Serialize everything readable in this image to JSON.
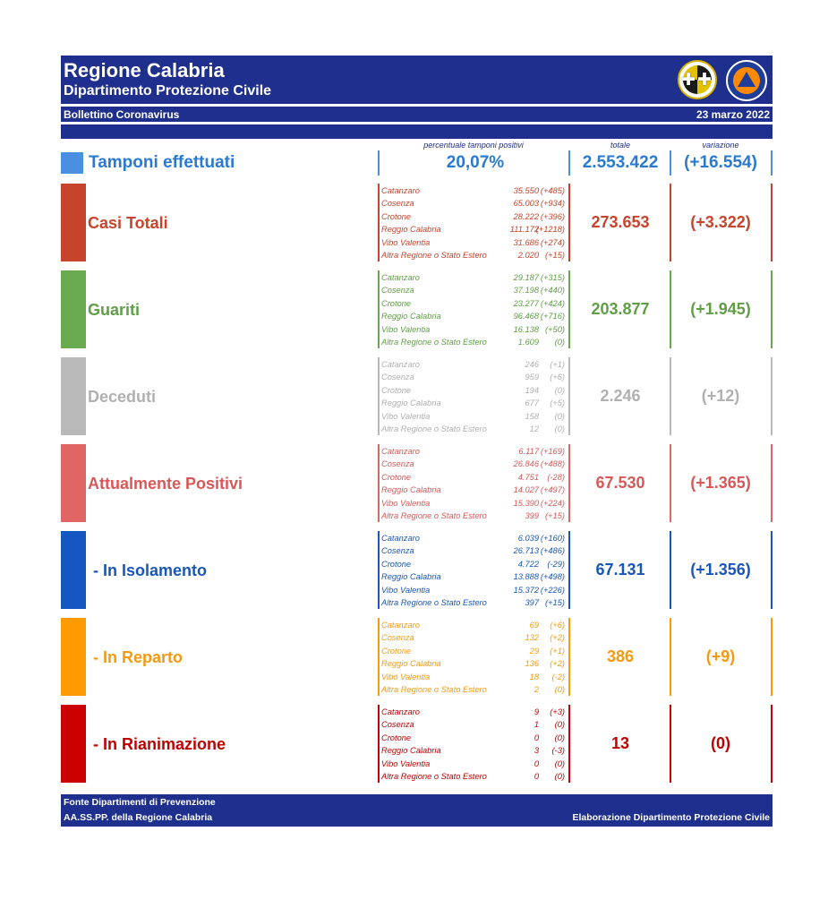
{
  "header": {
    "title": "Regione Calabria",
    "subtitle": "Dipartimento Protezione Civile",
    "bulletin": "Bollettino Coronavirus",
    "date": "23 marzo 2022"
  },
  "columns": {
    "percent_label": "percentuale tamponi positivi",
    "total_label": "totale",
    "variation_label": "variazione"
  },
  "tamponi": {
    "label": "Tamponi effettuati",
    "percent": "20,07%",
    "total": "2.553.422",
    "variation": "(+16.554)",
    "color": "#4a90e2"
  },
  "sections": [
    {
      "key": "casi",
      "label": "Casi Totali",
      "total": "273.653",
      "variation": "(+3.322)",
      "color": "#c8432b",
      "text_color": "#c8432b",
      "rows": [
        {
          "name": "Catanzaro",
          "value": "35.550",
          "delta": "(+485)"
        },
        {
          "name": "Cosenza",
          "value": "65.003",
          "delta": "(+934)"
        },
        {
          "name": "Crotone",
          "value": "28.222",
          "delta": "(+396)"
        },
        {
          "name": "Reggio Calabria",
          "value": "111.172",
          "delta": "(+1218)"
        },
        {
          "name": "Vibo Valentia",
          "value": "31.686",
          "delta": "(+274)"
        },
        {
          "name": "Altra Regione o Stato Estero",
          "value": "2.020",
          "delta": "(+15)"
        }
      ]
    },
    {
      "key": "guariti",
      "label": "Guariti",
      "total": "203.877",
      "variation": "(+1.945)",
      "color": "#6aaa4e",
      "text_color": "#5f9e45",
      "rows": [
        {
          "name": "Catanzaro",
          "value": "29.187",
          "delta": "(+315)"
        },
        {
          "name": "Cosenza",
          "value": "37.198",
          "delta": "(+440)"
        },
        {
          "name": "Crotone",
          "value": "23.277",
          "delta": "(+424)"
        },
        {
          "name": "Reggio Calabria",
          "value": "96.468",
          "delta": "(+716)"
        },
        {
          "name": "Vibo Valentia",
          "value": "16.138",
          "delta": "(+50)"
        },
        {
          "name": "Altra Regione o Stato Estero",
          "value": "1.609",
          "delta": "(0)"
        }
      ]
    },
    {
      "key": "deceduti",
      "label": "Deceduti",
      "total": "2.246",
      "variation": "(+12)",
      "color": "#b9b9b9",
      "text_color": "#b0b0b0",
      "rows": [
        {
          "name": "Catanzaro",
          "value": "246",
          "delta": "(+1)"
        },
        {
          "name": "Cosenza",
          "value": "959",
          "delta": "(+6)"
        },
        {
          "name": "Crotone",
          "value": "194",
          "delta": "(0)"
        },
        {
          "name": "Reggio Calabria",
          "value": "677",
          "delta": "(+5)"
        },
        {
          "name": "Vibo Valentia",
          "value": "158",
          "delta": "(0)"
        },
        {
          "name": "Altra Regione o Stato Estero",
          "value": "12",
          "delta": "(0)"
        }
      ]
    },
    {
      "key": "positivi",
      "label": "Attualmente Positivi",
      "total": "67.530",
      "variation": "(+1.365)",
      "color": "#e06666",
      "text_color": "#d85858",
      "rows": [
        {
          "name": "Catanzaro",
          "value": "6.117",
          "delta": "(+169)"
        },
        {
          "name": "Cosenza",
          "value": "26.846",
          "delta": "(+488)"
        },
        {
          "name": "Crotone",
          "value": "4.751",
          "delta": "(-28)"
        },
        {
          "name": "Reggio Calabria",
          "value": "14.027",
          "delta": "(+497)"
        },
        {
          "name": "Vibo Valentia",
          "value": "15.390",
          "delta": "(+224)"
        },
        {
          "name": "Altra Regione o Stato Estero",
          "value": "399",
          "delta": "(+15)"
        }
      ]
    },
    {
      "key": "isolamento",
      "label": "- In Isolamento",
      "total": "67.131",
      "variation": "(+1.356)",
      "color": "#1557c0",
      "text_color": "#1a56b8",
      "rows": [
        {
          "name": "Catanzaro",
          "value": "6.039",
          "delta": "(+160)"
        },
        {
          "name": "Cosenza",
          "value": "26.713",
          "delta": "(+486)"
        },
        {
          "name": "Crotone",
          "value": "4.722",
          "delta": "(-29)"
        },
        {
          "name": "Reggio Calabria",
          "value": "13.888",
          "delta": "(+498)"
        },
        {
          "name": "Vibo Valentia",
          "value": "15.372",
          "delta": "(+226)"
        },
        {
          "name": "Altra Regione o Stato Estero",
          "value": "397",
          "delta": "(+15)"
        }
      ]
    },
    {
      "key": "reparto",
      "label": "- In Reparto",
      "total": "386",
      "variation": "(+9)",
      "color": "#ff9a00",
      "text_color": "#f39a12",
      "rows": [
        {
          "name": "Catanzaro",
          "value": "69",
          "delta": "(+6)"
        },
        {
          "name": "Cosenza",
          "value": "132",
          "delta": "(+2)"
        },
        {
          "name": "Crotone",
          "value": "29",
          "delta": "(+1)"
        },
        {
          "name": "Reggio Calabria",
          "value": "136",
          "delta": "(+2)"
        },
        {
          "name": "Vibo Valentia",
          "value": "18",
          "delta": "(-2)"
        },
        {
          "name": "Altra Regione o Stato Estero",
          "value": "2",
          "delta": "(0)"
        }
      ]
    },
    {
      "key": "rianimazione",
      "label": "- In Rianimazione",
      "total": "13",
      "variation": "(0)",
      "color": "#cc0000",
      "text_color": "#c00000",
      "rows": [
        {
          "name": "Catanzaro",
          "value": "9",
          "delta": "(+3)"
        },
        {
          "name": "Cosenza",
          "value": "1",
          "delta": "(0)"
        },
        {
          "name": "Crotone",
          "value": "0",
          "delta": "(0)"
        },
        {
          "name": "Reggio Calabria",
          "value": "3",
          "delta": "(-3)"
        },
        {
          "name": "Vibo Valentia",
          "value": "0",
          "delta": "(0)"
        },
        {
          "name": "Altra Regione o Stato Estero",
          "value": "0",
          "delta": "(0)"
        }
      ]
    }
  ],
  "footer": {
    "line1": "Fonte Dipartimenti di Prevenzione",
    "line2": "AA.SS.PP.  della Regione Calabria",
    "right": "Elaborazione Dipartimento Protezione Civile"
  }
}
